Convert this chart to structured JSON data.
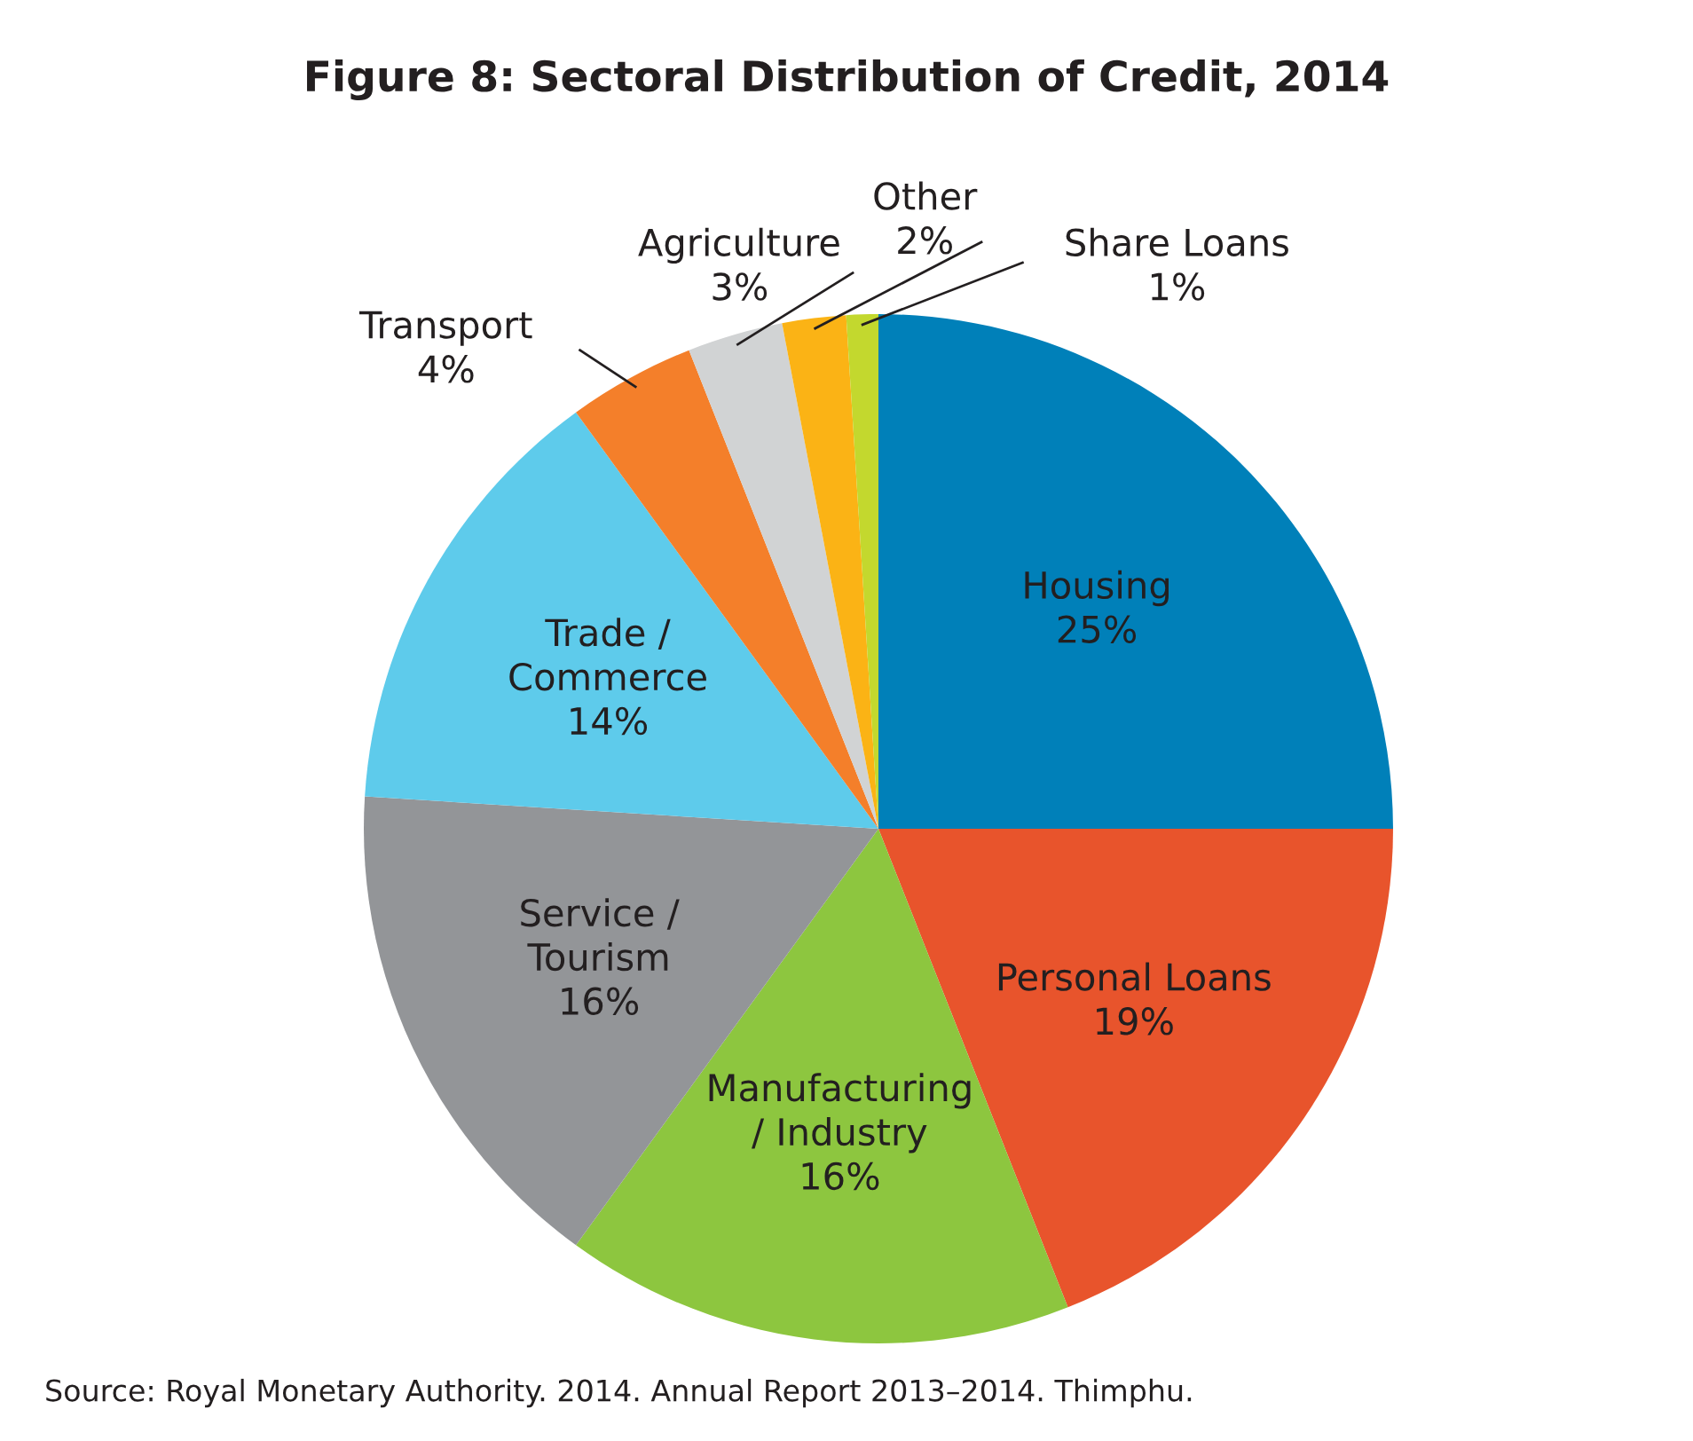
{
  "chart_data": {
    "type": "pie",
    "title": "Figure 8: Sectoral Distribution of Credit, 2014",
    "categories": [
      "Housing",
      "Personal Loans",
      "Manufacturing\n/ Industry",
      "Service /\nTourism",
      "Trade /\nCommerce",
      "Transport",
      "Agriculture",
      "Other",
      "Share Loans"
    ],
    "values": [
      25,
      19,
      16,
      16,
      14,
      4,
      3,
      2,
      1
    ],
    "colors": [
      "#0080b9",
      "#e8542c",
      "#8dc63f",
      "#939598",
      "#5ecbeb",
      "#f47f2a",
      "#d1d3d4",
      "#fbb315",
      "#c3d82e"
    ],
    "value_labels": [
      "25%",
      "19%",
      "16%",
      "16%",
      "14%",
      "4%",
      "3%",
      "2%",
      "1%"
    ],
    "annotations": [
      "Source: Royal Monetary Authority. 2014. Annual Report 2013–2014. Thimphu."
    ]
  }
}
